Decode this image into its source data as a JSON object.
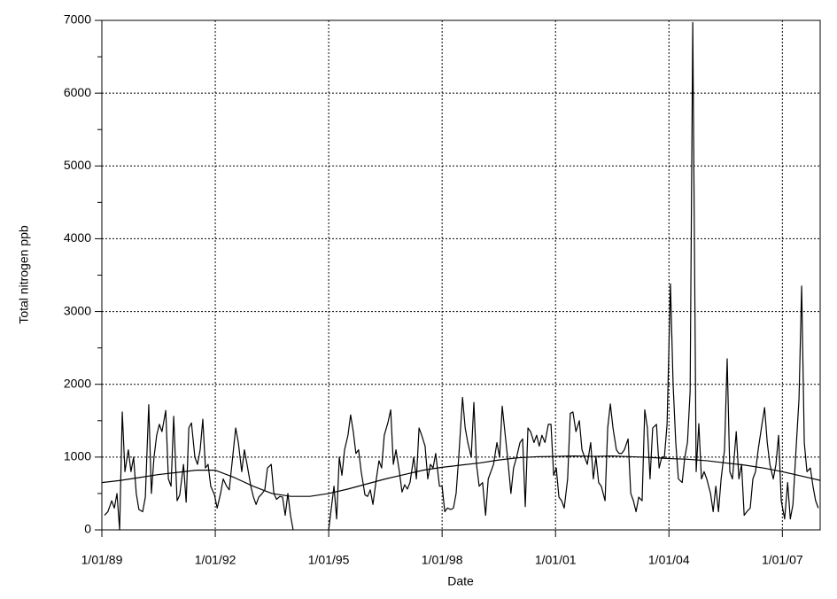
{
  "chart_data": {
    "type": "line",
    "x_label": "Date",
    "y_label": "Total nitrogen ppb",
    "xlim": [
      1989,
      2008
    ],
    "xticks": [
      {
        "value": 1989,
        "label": "1/01/89"
      },
      {
        "value": 1992,
        "label": "1/01/92"
      },
      {
        "value": 1995,
        "label": "1/01/95"
      },
      {
        "value": 1998,
        "label": "1/01/98"
      },
      {
        "value": 2001,
        "label": "1/01/01"
      },
      {
        "value": 2004,
        "label": "1/01/04"
      },
      {
        "value": 2007,
        "label": "1/01/07"
      }
    ],
    "ylim": [
      0,
      7000
    ],
    "yticks": [
      0,
      1000,
      2000,
      3000,
      4000,
      5000,
      6000,
      7000
    ],
    "y_minor_ticks": [
      500,
      1500,
      2500,
      3500,
      4500,
      5500,
      6500
    ],
    "grid": true,
    "series": [
      {
        "color": "#000000",
        "x": [
          1989.07,
          1989.16,
          1989.26,
          1989.33,
          1989.4,
          1989.47,
          1989.54,
          1989.61,
          1989.7,
          1989.77,
          1989.84,
          1989.91,
          1989.98,
          1990.08,
          1990.15,
          1990.24,
          1990.31,
          1990.38,
          1990.45,
          1990.52,
          1990.59,
          1990.69,
          1990.76,
          1990.83,
          1990.9,
          1990.99,
          1991.06,
          1991.16,
          1991.23,
          1991.3,
          1991.37,
          1991.46,
          1991.53,
          1991.6,
          1991.67,
          1991.74,
          1991.81,
          1991.88,
          1991.98,
          1992.05,
          1992.14,
          1992.21,
          1992.3,
          1992.37,
          1992.44,
          1992.54,
          1992.61,
          1992.7,
          1992.77,
          1992.84,
          1992.94,
          1993.01,
          1993.08,
          1993.15,
          1993.24,
          1993.31,
          1993.38,
          1993.48,
          1993.55,
          1993.62,
          1993.71,
          1993.78,
          1993.85,
          1993.92,
          1993.99,
          1994.06,
          null,
          1995.0,
          1995.07,
          1995.14,
          1995.21,
          1995.28,
          1995.35,
          1995.42,
          1995.51,
          1995.58,
          1995.65,
          1995.72,
          1995.79,
          1995.86,
          1995.96,
          1996.03,
          1996.1,
          1996.17,
          1996.26,
          1996.33,
          1996.4,
          1996.47,
          1996.57,
          1996.64,
          1996.71,
          1996.78,
          1996.87,
          1996.94,
          1997.01,
          1997.08,
          1997.15,
          1997.25,
          1997.32,
          1997.39,
          1997.46,
          1997.55,
          1997.62,
          1997.69,
          1997.76,
          1997.83,
          1997.93,
          1998.0,
          1998.07,
          1998.14,
          1998.23,
          1998.3,
          1998.37,
          1998.44,
          1998.54,
          1998.61,
          1998.68,
          1998.77,
          1998.84,
          1998.91,
          1998.98,
          1999.07,
          1999.15,
          1999.22,
          1999.29,
          1999.36,
          1999.45,
          1999.52,
          1999.59,
          1999.66,
          1999.75,
          1999.82,
          1999.89,
          1999.97,
          2000.06,
          2000.13,
          2000.2,
          2000.27,
          2000.34,
          2000.43,
          2000.5,
          2000.57,
          2000.64,
          2000.72,
          2000.81,
          2000.88,
          2000.95,
          2001.02,
          2001.09,
          2001.16,
          2001.23,
          2001.32,
          2001.39,
          2001.46,
          2001.54,
          2001.63,
          2001.7,
          2001.77,
          2001.84,
          2001.93,
          2002.0,
          2002.07,
          2002.14,
          2002.21,
          2002.31,
          2002.38,
          2002.45,
          2002.52,
          2002.61,
          2002.68,
          2002.75,
          2002.82,
          2002.92,
          2002.99,
          2003.06,
          2003.13,
          2003.2,
          2003.29,
          2003.36,
          2003.43,
          2003.5,
          2003.57,
          2003.67,
          2003.74,
          2003.81,
          2003.88,
          2003.95,
          2004.04,
          2004.11,
          2004.18,
          2004.25,
          2004.35,
          2004.42,
          2004.49,
          2004.56,
          2004.63,
          2004.72,
          2004.79,
          2004.86,
          2004.93,
          2005.0,
          2005.1,
          2005.17,
          2005.24,
          2005.31,
          2005.38,
          2005.47,
          2005.54,
          2005.61,
          2005.68,
          2005.78,
          2005.85,
          2005.92,
          2005.99,
          2006.06,
          2006.15,
          2006.22,
          2006.29,
          2006.36,
          2006.46,
          2006.53,
          2006.6,
          2006.67,
          2006.76,
          2006.83,
          2006.9,
          2006.97,
          2007.06,
          2007.14,
          2007.21,
          2007.28,
          2007.35,
          2007.44,
          2007.51,
          2007.58,
          2007.65,
          2007.74,
          2007.81,
          2007.88,
          2007.95
        ],
        "values": [
          200,
          250,
          400,
          300,
          500,
          0,
          1620,
          800,
          1100,
          800,
          1000,
          500,
          280,
          250,
          450,
          1720,
          500,
          1000,
          1300,
          1450,
          1350,
          1640,
          700,
          600,
          1560,
          400,
          480,
          900,
          380,
          1400,
          1470,
          1000,
          900,
          1100,
          1520,
          850,
          900,
          600,
          480,
          300,
          500,
          700,
          600,
          550,
          900,
          1400,
          1200,
          800,
          1100,
          900,
          600,
          450,
          350,
          450,
          500,
          550,
          850,
          900,
          500,
          420,
          460,
          450,
          200,
          500,
          200,
          0,
          null,
          0,
          300,
          600,
          150,
          1000,
          750,
          1100,
          1300,
          1580,
          1350,
          1050,
          1100,
          800,
          480,
          460,
          550,
          350,
          700,
          950,
          850,
          1300,
          1480,
          1650,
          900,
          1100,
          800,
          520,
          620,
          560,
          650,
          1000,
          700,
          1400,
          1300,
          1150,
          700,
          900,
          850,
          1050,
          600,
          600,
          250,
          300,
          280,
          300,
          500,
          1000,
          1820,
          1400,
          1200,
          1000,
          1750,
          900,
          600,
          650,
          200,
          700,
          800,
          900,
          1200,
          1000,
          1700,
          1350,
          900,
          500,
          850,
          1000,
          1200,
          1250,
          320,
          1400,
          1350,
          1200,
          1300,
          1150,
          1300,
          1200,
          1450,
          1450,
          750,
          850,
          450,
          400,
          300,
          700,
          1600,
          1620,
          1350,
          1500,
          1100,
          1000,
          900,
          1200,
          700,
          1000,
          650,
          600,
          400,
          1400,
          1730,
          1400,
          1100,
          1050,
          1050,
          1100,
          1250,
          500,
          400,
          250,
          450,
          400,
          1650,
          1400,
          700,
          1400,
          1450,
          850,
          1000,
          1000,
          1450,
          3380,
          2000,
          1200,
          700,
          650,
          1000,
          1200,
          1900,
          6970,
          800,
          1460,
          700,
          800,
          700,
          500,
          250,
          600,
          250,
          700,
          1100,
          2350,
          800,
          700,
          1350,
          700,
          900,
          200,
          250,
          300,
          700,
          800,
          1100,
          1450,
          1680,
          1200,
          900,
          700,
          900,
          1300,
          400,
          150,
          650,
          150,
          350,
          1000,
          1800,
          3350,
          1200,
          800,
          850,
          600,
          400,
          300
        ]
      },
      {
        "color": "#000000",
        "x": [
          1989,
          1989.5,
          1990,
          1990.5,
          1991,
          1991.5,
          1992,
          1992.5,
          1993,
          1993.5,
          1994,
          1994.5,
          1995,
          1995.5,
          1996,
          1996.5,
          1997,
          1997.5,
          1998,
          1998.5,
          1999,
          1999.5,
          2000,
          2000.5,
          2001,
          2001.5,
          2002,
          2002.5,
          2003,
          2003.5,
          2004,
          2004.5,
          2005,
          2005.5,
          2006,
          2006.5,
          2007,
          2007.5,
          2008
        ],
        "values": [
          650,
          680,
          720,
          760,
          790,
          820,
          820,
          720,
          600,
          500,
          460,
          460,
          500,
          560,
          630,
          700,
          760,
          820,
          860,
          890,
          920,
          960,
          990,
          1005,
          1010,
          1015,
          1010,
          1015,
          1005,
          995,
          980,
          970,
          950,
          920,
          890,
          850,
          800,
          740,
          680
        ]
      }
    ]
  }
}
